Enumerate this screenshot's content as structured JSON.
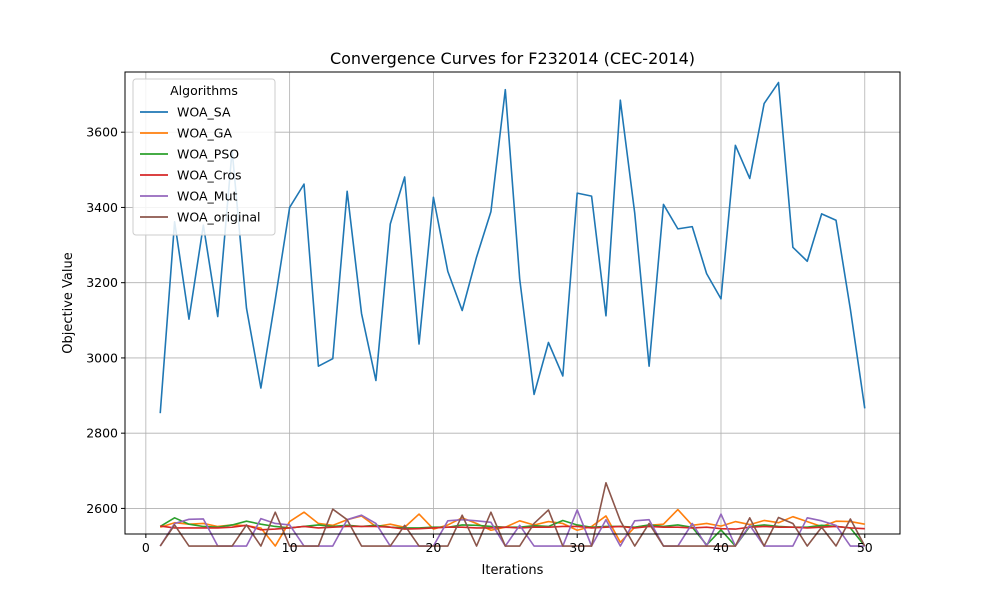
{
  "chart_data": {
    "type": "line",
    "title": "Convergence Curves for F232014 (CEC-2014)",
    "xlabel": "Iterations",
    "ylabel": "Objective Value",
    "xlim": [
      -1.45,
      52.45
    ],
    "ylim": [
      2532,
      3760
    ],
    "xticks": [
      0,
      10,
      20,
      30,
      40,
      50
    ],
    "yticks": [
      2600,
      2800,
      3000,
      3200,
      3400,
      3600
    ],
    "grid": true,
    "legend": {
      "title": "Algorithms",
      "placement": "top-left"
    },
    "x": [
      1,
      2,
      3,
      4,
      5,
      6,
      7,
      8,
      9,
      10,
      11,
      12,
      13,
      14,
      15,
      16,
      17,
      18,
      19,
      20,
      21,
      22,
      23,
      24,
      25,
      26,
      27,
      28,
      29,
      30,
      31,
      32,
      33,
      34,
      35,
      36,
      37,
      38,
      39,
      40,
      41,
      42,
      43,
      44,
      45,
      46,
      47,
      48,
      49,
      50
    ],
    "series": [
      {
        "name": "WOA_SA",
        "color": "#1f77b4",
        "values": [
          2853,
          3362,
          3103,
          3353,
          3110,
          3552,
          3132,
          2920,
          3155,
          3400,
          3462,
          2978,
          2998,
          3443,
          3118,
          2940,
          3356,
          3481,
          3037,
          3427,
          3230,
          3126,
          3268,
          3389,
          3713,
          3210,
          2903,
          3041,
          2952,
          3438,
          3430,
          3112,
          3685,
          3385,
          2978,
          3408,
          3343,
          3349,
          3224,
          3157,
          3565,
          3477,
          3676,
          3732,
          3294,
          3257,
          3383,
          3366,
          3129,
          2866
        ]
      },
      {
        "name": "WOA_GA",
        "color": "#ff7f0e",
        "values": [
          2550,
          2562,
          2558,
          2560,
          2552,
          2556,
          2554,
          2548,
          2500,
          2565,
          2590,
          2560,
          2555,
          2570,
          2580,
          2552,
          2558,
          2550,
          2585,
          2545,
          2556,
          2575,
          2560,
          2542,
          2550,
          2567,
          2556,
          2565,
          2560,
          2542,
          2552,
          2580,
          2510,
          2550,
          2555,
          2558,
          2597,
          2555,
          2560,
          2553,
          2565,
          2557,
          2568,
          2562,
          2578,
          2565,
          2552,
          2566,
          2565,
          2558
        ]
      },
      {
        "name": "WOA_PSO",
        "color": "#2ca02c",
        "values": [
          2552,
          2575,
          2558,
          2552,
          2550,
          2556,
          2566,
          2558,
          2552,
          2548,
          2552,
          2556,
          2552,
          2555,
          2552,
          2555,
          2550,
          2548,
          2548,
          2550,
          2550,
          2556,
          2555,
          2552,
          2550,
          2550,
          2554,
          2552,
          2568,
          2556,
          2550,
          2552,
          2552,
          2550,
          2556,
          2552,
          2556,
          2550,
          2503,
          2543,
          2500,
          2552,
          2556,
          2552,
          2550,
          2550,
          2555,
          2552,
          2548,
          2500
        ]
      },
      {
        "name": "WOA_Cros",
        "color": "#d62728",
        "values": [
          2553,
          2548,
          2548,
          2548,
          2548,
          2550,
          2555,
          2543,
          2545,
          2548,
          2552,
          2548,
          2550,
          2552,
          2552,
          2552,
          2550,
          2545,
          2546,
          2548,
          2550,
          2550,
          2548,
          2548,
          2550,
          2548,
          2550,
          2550,
          2552,
          2552,
          2548,
          2550,
          2552,
          2548,
          2552,
          2550,
          2550,
          2548,
          2550,
          2546,
          2545,
          2550,
          2552,
          2550,
          2550,
          2548,
          2550,
          2552,
          2548,
          2546
        ]
      },
      {
        "name": "WOA_Mut",
        "color": "#9467bd",
        "values": [
          2500,
          2560,
          2571,
          2572,
          2500,
          2500,
          2500,
          2573,
          2560,
          2556,
          2500,
          2500,
          2500,
          2570,
          2582,
          2560,
          2500,
          2500,
          2500,
          2500,
          2567,
          2570,
          2567,
          2563,
          2500,
          2555,
          2500,
          2500,
          2500,
          2596,
          2500,
          2570,
          2500,
          2567,
          2570,
          2500,
          2500,
          2560,
          2500,
          2585,
          2500,
          2555,
          2500,
          2500,
          2500,
          2575,
          2567,
          2555,
          2500,
          2500
        ]
      },
      {
        "name": "WOA_original",
        "color": "#8c564b",
        "values": [
          2500,
          2556,
          2500,
          2500,
          2500,
          2500,
          2556,
          2500,
          2590,
          2500,
          2500,
          2500,
          2598,
          2570,
          2500,
          2500,
          2500,
          2555,
          2500,
          2500,
          2500,
          2582,
          2500,
          2590,
          2500,
          2500,
          2560,
          2596,
          2500,
          2500,
          2500,
          2668,
          2567,
          2500,
          2560,
          2500,
          2500,
          2500,
          2500,
          2500,
          2500,
          2575,
          2500,
          2576,
          2560,
          2500,
          2550,
          2500,
          2572,
          2500
        ]
      }
    ]
  }
}
